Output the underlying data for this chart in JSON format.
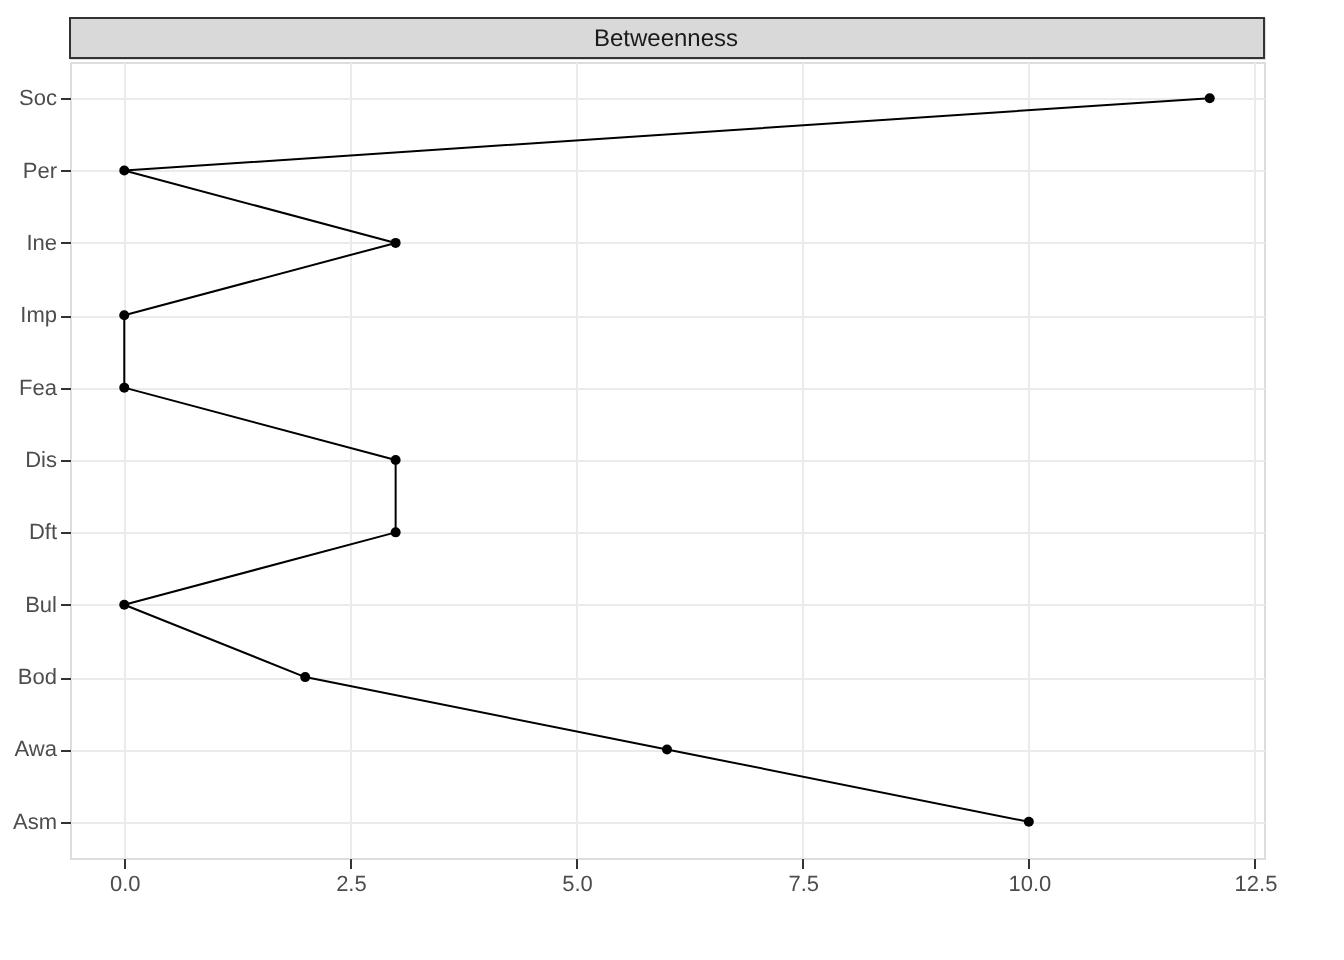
{
  "chart_data": {
    "type": "line",
    "title": "Betweenness",
    "orientation": "horizontal",
    "categories": [
      "Soc",
      "Per",
      "Ine",
      "Imp",
      "Fea",
      "Dis",
      "Dft",
      "Bul",
      "Bod",
      "Awa",
      "Asm"
    ],
    "series": [
      {
        "color": "#000000",
        "values": [
          12,
          0,
          3,
          0,
          0,
          3,
          3,
          0,
          2,
          6,
          10
        ]
      }
    ],
    "xlim": [
      -0.6,
      12.6
    ],
    "xticks": [
      {
        "value": 0,
        "label": "0.0"
      },
      {
        "value": 2.5,
        "label": "2.5"
      },
      {
        "value": 5,
        "label": "5.0"
      },
      {
        "value": 7.5,
        "label": "7.5"
      },
      {
        "value": 10,
        "label": "10.0"
      },
      {
        "value": 12.5,
        "label": "12.5"
      }
    ],
    "grid": true,
    "marker": "circle",
    "line_style": "solid"
  }
}
